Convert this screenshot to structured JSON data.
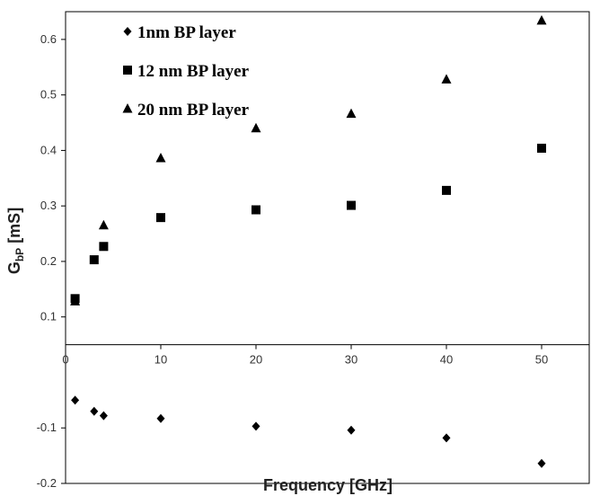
{
  "chart_data": {
    "type": "scatter",
    "title": "",
    "xlabel": "Frequency [GHz]",
    "ylabel": {
      "base": "G",
      "sub": "bP",
      "unit": " [mS]"
    },
    "xlim": [
      0,
      55
    ],
    "ylim": [
      -0.2,
      0.65
    ],
    "x_ticks": [
      0,
      10,
      20,
      30,
      40,
      50
    ],
    "y_ticks_above": [
      0.1,
      0.2,
      0.3,
      0.4,
      0.5,
      0.6
    ],
    "y_ticks_below": [
      -0.1,
      -0.2
    ],
    "y_tick_labels_above": [
      "0.1",
      "0.2",
      "0.3",
      "0.4",
      "0.5",
      "0.6"
    ],
    "y_tick_labels_below": [
      "-0.1",
      "-0.2"
    ],
    "x_tick_labels": [
      "0",
      "10",
      "20",
      "30",
      "40",
      "50"
    ],
    "axis_break_y": 0.05,
    "grid": false,
    "legend_position": "top-left",
    "marker_color": "#000000",
    "series": [
      {
        "name": "1nm BP layer",
        "marker": "diamond",
        "x": [
          1,
          3,
          4,
          10,
          20,
          30,
          40,
          50
        ],
        "y": [
          -0.05,
          -0.07,
          -0.078,
          -0.083,
          -0.097,
          -0.104,
          -0.118,
          -0.164
        ]
      },
      {
        "name": "12 nm BP layer",
        "marker": "square",
        "x": [
          1,
          3,
          4,
          10,
          20,
          30,
          40,
          50
        ],
        "y": [
          0.133,
          0.203,
          0.227,
          0.279,
          0.293,
          0.301,
          0.328,
          0.404
        ]
      },
      {
        "name": "20 nm BP layer",
        "marker": "triangle",
        "x": [
          1,
          4,
          10,
          20,
          30,
          40,
          50
        ],
        "y": [
          0.128,
          0.265,
          0.386,
          0.44,
          0.466,
          0.528,
          0.634
        ]
      }
    ]
  }
}
